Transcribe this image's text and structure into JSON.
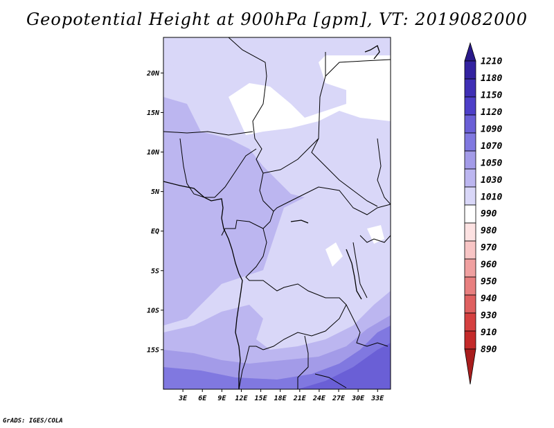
{
  "map": {
    "title": "Geopotential Height at 900hPa [gpm], VT: 2019082000",
    "lat_labels": [
      "20N",
      "15N",
      "10N",
      "5N",
      "EQ",
      "5S",
      "10S",
      "15S"
    ],
    "lon_labels": [
      "3E",
      "6E",
      "9E",
      "12E",
      "15E",
      "18E",
      "21E",
      "24E",
      "27E",
      "30E",
      "33E"
    ],
    "extent": {
      "lon_min": 0,
      "lon_max": 35,
      "lat_min": -20,
      "lat_max": 24.5
    },
    "colorbar": {
      "levels": [
        "1210",
        "1180",
        "1150",
        "1120",
        "1090",
        "1070",
        "1050",
        "1030",
        "1010",
        "990",
        "980",
        "970",
        "960",
        "950",
        "940",
        "930",
        "910",
        "890"
      ],
      "colors": [
        "#2a1a8a",
        "#3322a0",
        "#3f2fb5",
        "#4d3fc8",
        "#6a5fd6",
        "#8078e0",
        "#a39be8",
        "#bcb6f0",
        "#d9d7f8",
        "#ffffff",
        "#fde2e2",
        "#f8c5c5",
        "#f0a0a0",
        "#e87f7f",
        "#df6060",
        "#d54040",
        "#c42a2a",
        "#a81d1d"
      ]
    },
    "fill_colors": {
      "light": "#d9d7f8",
      "mid": "#bcb6f0",
      "deep": "#a39be8",
      "deeper": "#8078e0",
      "white": "#ffffff"
    },
    "credit": "GrADS: IGES/COLA"
  }
}
